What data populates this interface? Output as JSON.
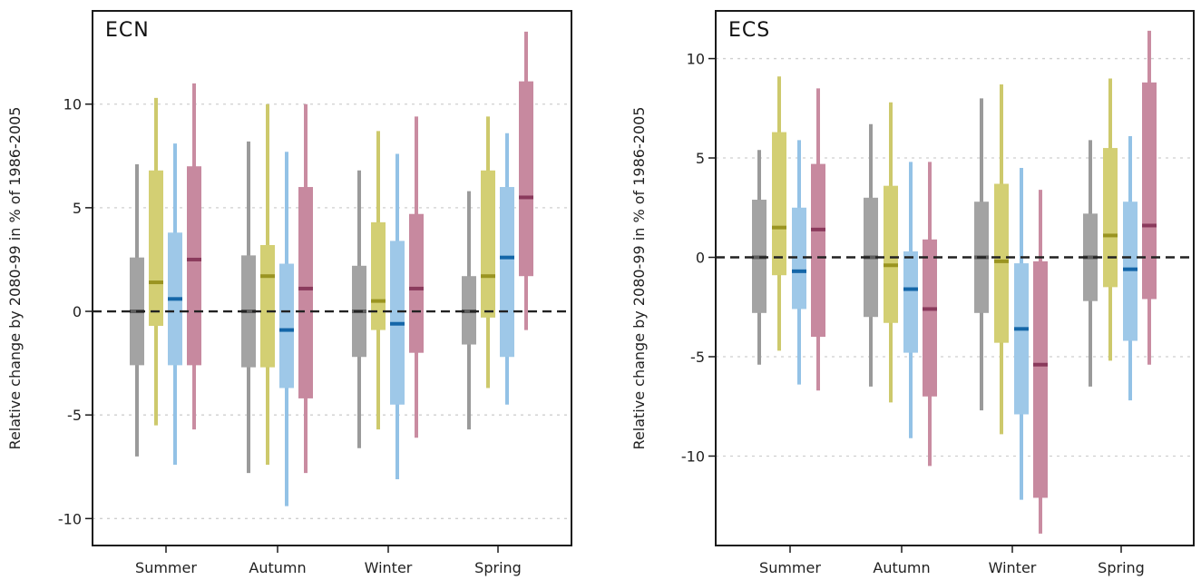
{
  "colors": {
    "gray": {
      "thin": "#9a9a9a",
      "box": "#a3a3a3",
      "median": "#5e5e5e"
    },
    "olive": {
      "thin": "#cdc96c",
      "box": "#d3cf73",
      "median": "#9a9421"
    },
    "blue": {
      "thin": "#93c2e6",
      "box": "#9ec8e8",
      "median": "#1466a8"
    },
    "rose": {
      "thin": "#c98ca1",
      "box": "#c7899f",
      "median": "#8a3a5c"
    }
  },
  "chart_data": [
    {
      "type": "box",
      "title": "ECN",
      "ylabel": "Relative change by 2080-99 in % of 1986-2005",
      "xlabel": "",
      "categories": [
        "Summer",
        "Autumn",
        "Winter",
        "Spring"
      ],
      "ylim": [
        -11.3,
        14.5
      ],
      "yticks": [
        -10,
        -5,
        0,
        5,
        10
      ],
      "yticklabels": [
        "-10",
        "-5",
        "0",
        "5",
        "10"
      ],
      "grid": "horizontal dotted",
      "reference_line": 0,
      "series": [
        {
          "color_key": "gray",
          "stats": [
            [
              -7.0,
              -2.6,
              0.0,
              2.6,
              7.1
            ],
            [
              -7.8,
              -2.7,
              0.0,
              2.7,
              8.2
            ],
            [
              -6.6,
              -2.2,
              0.0,
              2.2,
              6.8
            ],
            [
              -5.7,
              -1.6,
              0.0,
              1.7,
              5.8
            ]
          ]
        },
        {
          "color_key": "olive",
          "stats": [
            [
              -5.5,
              -0.7,
              1.4,
              6.8,
              10.3
            ],
            [
              -7.4,
              -2.7,
              1.7,
              3.2,
              10.0
            ],
            [
              -5.7,
              -0.9,
              0.5,
              4.3,
              8.7
            ],
            [
              -3.7,
              -0.3,
              1.7,
              6.8,
              9.4
            ]
          ]
        },
        {
          "color_key": "blue",
          "stats": [
            [
              -7.4,
              -2.6,
              0.6,
              3.8,
              8.1
            ],
            [
              -9.4,
              -3.7,
              -0.9,
              2.3,
              7.7
            ],
            [
              -8.1,
              -4.5,
              -0.6,
              3.4,
              7.6
            ],
            [
              -4.5,
              -2.2,
              2.6,
              6.0,
              8.6
            ]
          ]
        },
        {
          "color_key": "rose",
          "stats": [
            [
              -5.7,
              -2.6,
              2.5,
              7.0,
              11.0
            ],
            [
              -7.8,
              -4.2,
              1.1,
              6.0,
              10.0
            ],
            [
              -6.1,
              -2.0,
              1.1,
              4.7,
              9.4
            ],
            [
              -0.9,
              1.7,
              5.5,
              11.1,
              13.5
            ]
          ]
        }
      ]
    },
    {
      "type": "box",
      "title": "ECS",
      "ylabel": "Relative change by 2080-99 in % of 1986-2005",
      "xlabel": "",
      "categories": [
        "Summer",
        "Autumn",
        "Winter",
        "Spring"
      ],
      "ylim": [
        -14.5,
        12.4
      ],
      "yticks": [
        -10,
        -5,
        0,
        5,
        10
      ],
      "yticklabels": [
        "-10",
        "-5",
        "0",
        "5",
        "10"
      ],
      "grid": "horizontal dotted",
      "reference_line": 0,
      "series": [
        {
          "color_key": "gray",
          "stats": [
            [
              -5.4,
              -2.8,
              0.0,
              2.9,
              5.4
            ],
            [
              -6.5,
              -3.0,
              0.0,
              3.0,
              6.7
            ],
            [
              -7.7,
              -2.8,
              0.0,
              2.8,
              8.0
            ],
            [
              -6.5,
              -2.2,
              0.0,
              2.2,
              5.9
            ]
          ]
        },
        {
          "color_key": "olive",
          "stats": [
            [
              -4.7,
              -0.9,
              1.5,
              6.3,
              9.1
            ],
            [
              -7.3,
              -3.3,
              -0.4,
              3.6,
              7.8
            ],
            [
              -8.9,
              -4.3,
              -0.2,
              3.7,
              8.7
            ],
            [
              -5.2,
              -1.5,
              1.1,
              5.5,
              9.0
            ]
          ]
        },
        {
          "color_key": "blue",
          "stats": [
            [
              -6.4,
              -2.6,
              -0.7,
              2.5,
              5.9
            ],
            [
              -9.1,
              -4.8,
              -1.6,
              0.3,
              4.8
            ],
            [
              -12.2,
              -7.9,
              -3.6,
              -0.3,
              4.5
            ],
            [
              -7.2,
              -4.2,
              -0.6,
              2.8,
              6.1
            ]
          ]
        },
        {
          "color_key": "rose",
          "stats": [
            [
              -6.7,
              -4.0,
              1.4,
              4.7,
              8.5
            ],
            [
              -10.5,
              -7.0,
              -2.6,
              0.9,
              4.8
            ],
            [
              -13.9,
              -12.1,
              -5.4,
              -0.2,
              3.4
            ],
            [
              -5.4,
              -2.1,
              1.6,
              8.8,
              11.4
            ]
          ]
        }
      ]
    }
  ]
}
